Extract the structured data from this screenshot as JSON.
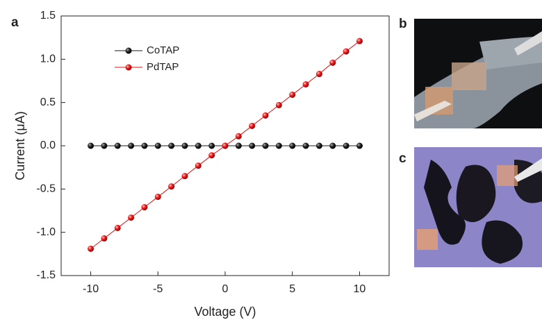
{
  "chart_data": {
    "type": "line",
    "x_label": "Voltage (V)",
    "y_label": "Current (μA)",
    "panel_labels": [
      "a",
      "b",
      "c"
    ],
    "x": [
      -10,
      -9,
      -8,
      -7,
      -6,
      -5,
      -4,
      -3,
      -2,
      -1,
      0,
      1,
      2,
      3,
      4,
      5,
      6,
      7,
      8,
      9,
      10
    ],
    "series": [
      {
        "name": "CoTAP",
        "color": "#1a1a1a",
        "values": [
          0,
          0,
          0,
          0,
          0,
          0,
          0,
          0,
          0,
          0,
          0,
          0,
          0,
          0,
          0,
          0,
          0,
          0,
          0,
          0,
          0
        ]
      },
      {
        "name": "PdTAP",
        "color": "#e01010",
        "values": [
          -1.19,
          -1.07,
          -0.95,
          -0.83,
          -0.71,
          -0.59,
          -0.47,
          -0.35,
          -0.23,
          -0.11,
          0,
          0.11,
          0.23,
          0.35,
          0.47,
          0.59,
          0.71,
          0.83,
          0.96,
          1.09,
          1.21
        ]
      }
    ],
    "xlim": [
      -12.2,
      12.2
    ],
    "xticks": [
      -10,
      -5,
      0,
      5,
      10
    ],
    "ylim": [
      -1.5,
      1.5
    ],
    "yticks": [
      -1.5,
      {
        "value": -1.0,
        "label": "-1.0"
      },
      -0.5,
      {
        "value": 0.0,
        "label": "0.0"
      },
      0.5,
      {
        "value": 1.0,
        "label": "1.0"
      },
      1.5
    ],
    "legend": "upper left",
    "grid": false
  }
}
